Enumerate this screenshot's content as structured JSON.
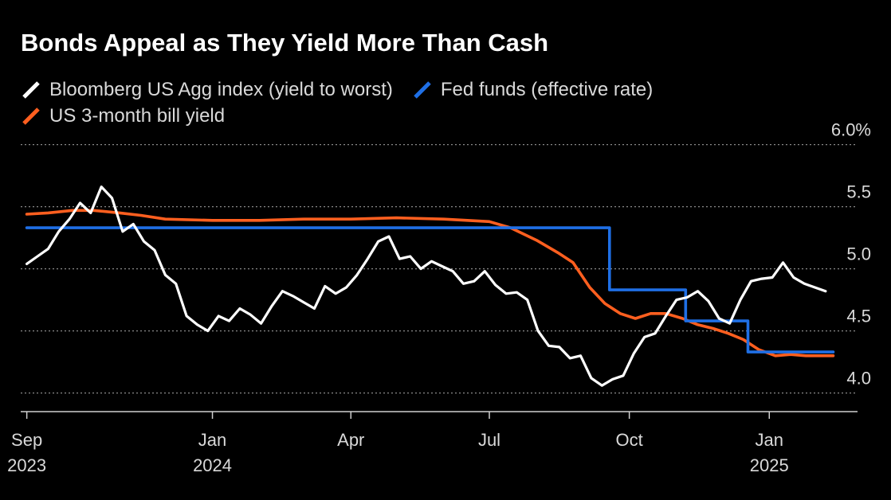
{
  "chart_data": {
    "type": "line",
    "title": "Bonds Appeal as They Yield More Than Cash",
    "xlabel": "",
    "ylabel": "",
    "ylim": [
      3.85,
      6.0
    ],
    "yticks": [
      {
        "value": 6.0,
        "label": "6.0%"
      },
      {
        "value": 5.5,
        "label": "5.5"
      },
      {
        "value": 5.0,
        "label": "5.0"
      },
      {
        "value": 4.5,
        "label": "4.5"
      },
      {
        "value": 4.0,
        "label": "4.0"
      }
    ],
    "xlim": [
      "2023-08-28",
      "2025-02-28"
    ],
    "xticks": [
      {
        "date": "2023-09-01",
        "label": "Sep",
        "year": "2023"
      },
      {
        "date": "2024-01-01",
        "label": "Jan",
        "year": "2024"
      },
      {
        "date": "2024-04-01",
        "label": "Apr",
        "year": ""
      },
      {
        "date": "2024-07-01",
        "label": "Jul",
        "year": ""
      },
      {
        "date": "2024-10-01",
        "label": "Oct",
        "year": ""
      },
      {
        "date": "2025-01-01",
        "label": "Jan",
        "year": "2025"
      }
    ],
    "series": [
      {
        "name": "Bloomberg US Agg index (yield to worst)",
        "color": "#ffffff",
        "step": false,
        "points": [
          [
            "2023-09-01",
            5.04
          ],
          [
            "2023-09-08",
            5.1
          ],
          [
            "2023-09-15",
            5.16
          ],
          [
            "2023-09-22",
            5.3
          ],
          [
            "2023-09-29",
            5.4
          ],
          [
            "2023-10-06",
            5.53
          ],
          [
            "2023-10-13",
            5.45
          ],
          [
            "2023-10-20",
            5.66
          ],
          [
            "2023-10-27",
            5.57
          ],
          [
            "2023-11-03",
            5.3
          ],
          [
            "2023-11-10",
            5.36
          ],
          [
            "2023-11-17",
            5.22
          ],
          [
            "2023-11-24",
            5.15
          ],
          [
            "2023-12-01",
            4.95
          ],
          [
            "2023-12-08",
            4.88
          ],
          [
            "2023-12-15",
            4.62
          ],
          [
            "2023-12-22",
            4.55
          ],
          [
            "2023-12-29",
            4.5
          ],
          [
            "2024-01-05",
            4.62
          ],
          [
            "2024-01-12",
            4.58
          ],
          [
            "2024-01-19",
            4.68
          ],
          [
            "2024-01-26",
            4.63
          ],
          [
            "2024-02-02",
            4.56
          ],
          [
            "2024-02-09",
            4.7
          ],
          [
            "2024-02-16",
            4.82
          ],
          [
            "2024-02-23",
            4.78
          ],
          [
            "2024-03-01",
            4.73
          ],
          [
            "2024-03-08",
            4.68
          ],
          [
            "2024-03-15",
            4.86
          ],
          [
            "2024-03-22",
            4.8
          ],
          [
            "2024-03-29",
            4.85
          ],
          [
            "2024-04-05",
            4.95
          ],
          [
            "2024-04-12",
            5.08
          ],
          [
            "2024-04-19",
            5.22
          ],
          [
            "2024-04-26",
            5.26
          ],
          [
            "2024-05-03",
            5.08
          ],
          [
            "2024-05-10",
            5.1
          ],
          [
            "2024-05-17",
            5.0
          ],
          [
            "2024-05-24",
            5.06
          ],
          [
            "2024-05-31",
            5.02
          ],
          [
            "2024-06-07",
            4.98
          ],
          [
            "2024-06-14",
            4.88
          ],
          [
            "2024-06-21",
            4.9
          ],
          [
            "2024-06-28",
            4.98
          ],
          [
            "2024-07-05",
            4.87
          ],
          [
            "2024-07-12",
            4.8
          ],
          [
            "2024-07-19",
            4.81
          ],
          [
            "2024-07-26",
            4.75
          ],
          [
            "2024-08-02",
            4.5
          ],
          [
            "2024-08-09",
            4.38
          ],
          [
            "2024-08-16",
            4.37
          ],
          [
            "2024-08-23",
            4.28
          ],
          [
            "2024-08-30",
            4.3
          ],
          [
            "2024-09-06",
            4.12
          ],
          [
            "2024-09-13",
            4.06
          ],
          [
            "2024-09-20",
            4.11
          ],
          [
            "2024-09-27",
            4.14
          ],
          [
            "2024-10-04",
            4.32
          ],
          [
            "2024-10-11",
            4.45
          ],
          [
            "2024-10-18",
            4.48
          ],
          [
            "2024-10-25",
            4.62
          ],
          [
            "2024-11-01",
            4.75
          ],
          [
            "2024-11-08",
            4.77
          ],
          [
            "2024-11-15",
            4.82
          ],
          [
            "2024-11-22",
            4.74
          ],
          [
            "2024-11-29",
            4.6
          ],
          [
            "2024-12-06",
            4.56
          ],
          [
            "2024-12-13",
            4.75
          ],
          [
            "2024-12-20",
            4.9
          ],
          [
            "2024-12-27",
            4.92
          ],
          [
            "2025-01-03",
            4.93
          ],
          [
            "2025-01-10",
            5.05
          ],
          [
            "2025-01-17",
            4.93
          ],
          [
            "2025-01-24",
            4.88
          ],
          [
            "2025-01-31",
            4.85
          ],
          [
            "2025-02-07",
            4.82
          ]
        ]
      },
      {
        "name": "Fed funds (effective rate)",
        "color": "#1f6fe5",
        "step": true,
        "points": [
          [
            "2023-09-01",
            5.33
          ],
          [
            "2024-09-18",
            5.33
          ],
          [
            "2024-09-18",
            4.83
          ],
          [
            "2024-11-07",
            4.83
          ],
          [
            "2024-11-07",
            4.58
          ],
          [
            "2024-12-18",
            4.58
          ],
          [
            "2024-12-18",
            4.33
          ],
          [
            "2025-02-12",
            4.33
          ]
        ]
      },
      {
        "name": "US 3-month bill yield",
        "color": "#ff5f1f",
        "step": false,
        "points": [
          [
            "2023-09-01",
            5.44
          ],
          [
            "2023-09-15",
            5.45
          ],
          [
            "2023-10-01",
            5.47
          ],
          [
            "2023-10-15",
            5.47
          ],
          [
            "2023-11-01",
            5.45
          ],
          [
            "2023-11-15",
            5.43
          ],
          [
            "2023-12-01",
            5.4
          ],
          [
            "2024-01-01",
            5.39
          ],
          [
            "2024-02-01",
            5.39
          ],
          [
            "2024-03-01",
            5.4
          ],
          [
            "2024-04-01",
            5.4
          ],
          [
            "2024-05-01",
            5.41
          ],
          [
            "2024-06-01",
            5.4
          ],
          [
            "2024-07-01",
            5.38
          ],
          [
            "2024-07-15",
            5.33
          ],
          [
            "2024-08-01",
            5.23
          ],
          [
            "2024-08-15",
            5.13
          ],
          [
            "2024-08-25",
            5.05
          ],
          [
            "2024-09-05",
            4.85
          ],
          [
            "2024-09-15",
            4.72
          ],
          [
            "2024-09-25",
            4.64
          ],
          [
            "2024-10-05",
            4.6
          ],
          [
            "2024-10-15",
            4.64
          ],
          [
            "2024-10-25",
            4.64
          ],
          [
            "2024-11-05",
            4.6
          ],
          [
            "2024-11-15",
            4.55
          ],
          [
            "2024-11-25",
            4.52
          ],
          [
            "2024-12-05",
            4.48
          ],
          [
            "2024-12-15",
            4.43
          ],
          [
            "2024-12-25",
            4.35
          ],
          [
            "2025-01-05",
            4.3
          ],
          [
            "2025-01-15",
            4.31
          ],
          [
            "2025-01-25",
            4.3
          ],
          [
            "2025-02-12",
            4.3
          ]
        ]
      }
    ]
  }
}
